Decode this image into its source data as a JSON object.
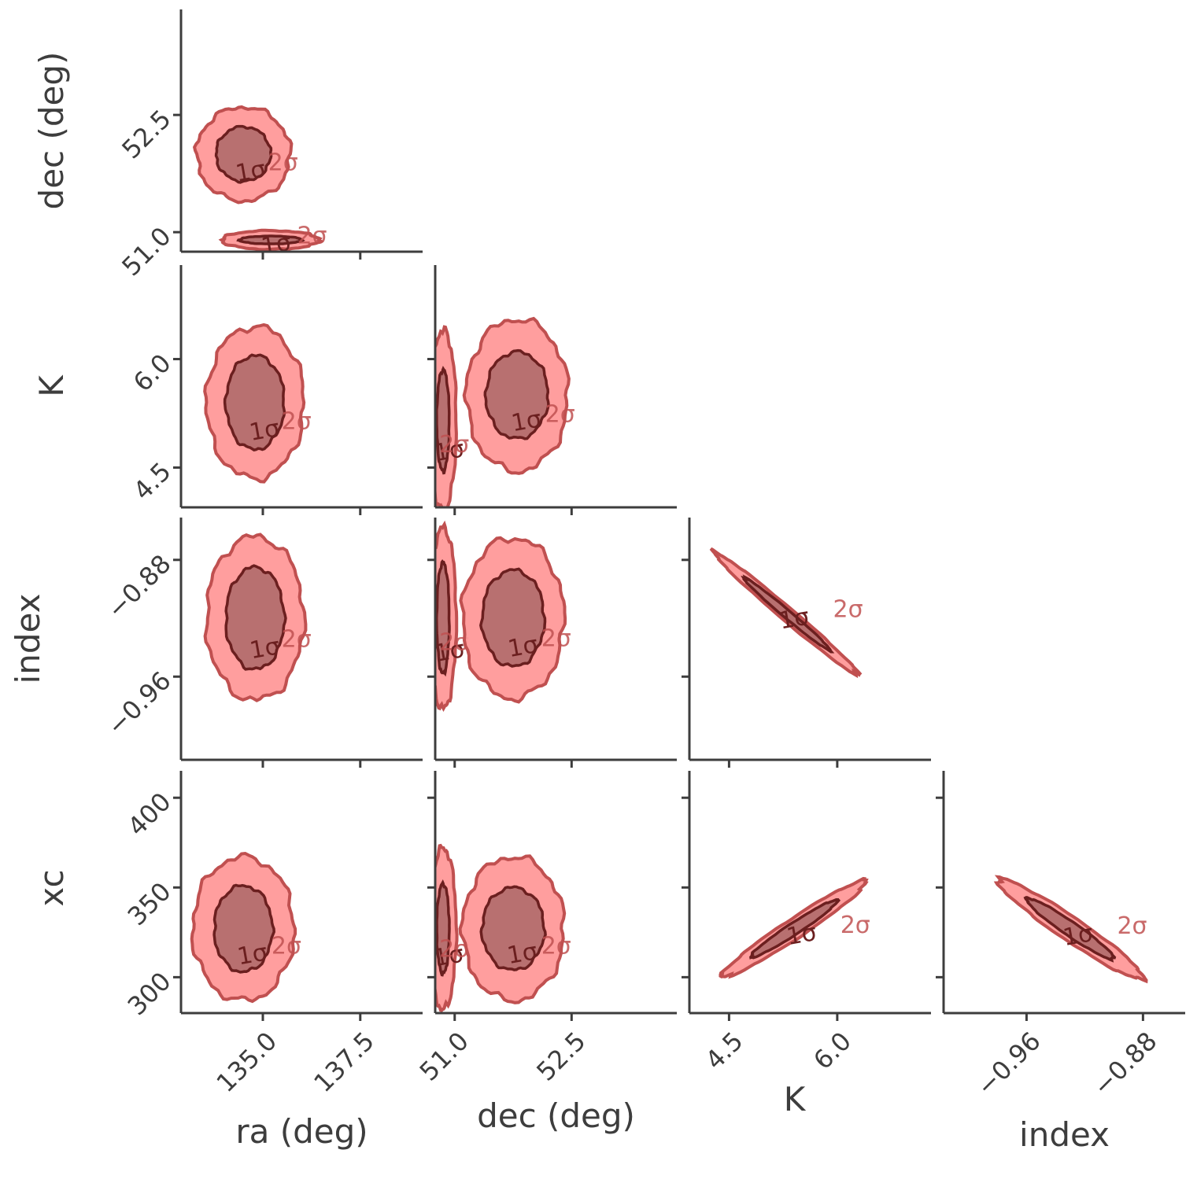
{
  "chart_data": {
    "type": "corner",
    "params": [
      "ra (deg)",
      "dec (deg)",
      "K",
      "index",
      "xc"
    ],
    "axes": {
      "ra (deg)": {
        "label": "ra (deg)",
        "lim": [
          132.9,
          139.1
        ],
        "ticks": [
          135.0,
          137.5
        ],
        "tick_labels": [
          "135.0",
          "137.5"
        ]
      },
      "dec (deg)": {
        "label": "dec (deg)",
        "lim": [
          50.75,
          53.85
        ],
        "ticks": [
          51.0,
          52.5
        ],
        "tick_labels": [
          "51.0",
          "52.5"
        ]
      },
      "K": {
        "label": "K",
        "lim": [
          3.95,
          7.3
        ],
        "ticks": [
          4.5,
          6.0
        ],
        "tick_labels": [
          "4.5",
          "6.0"
        ]
      },
      "index": {
        "label": "index",
        "lim": [
          -1.017,
          -0.851
        ],
        "ticks": [
          -0.96,
          -0.88
        ],
        "tick_labels": [
          "−0.96",
          "−0.88"
        ]
      },
      "xc": {
        "label": "xc",
        "lim": [
          280,
          415
        ],
        "ticks": [
          300,
          350,
          400
        ],
        "tick_labels": [
          "300",
          "350",
          "400"
        ]
      }
    },
    "colors": {
      "outer_fill": "#ff9999",
      "outer_line": "#c05050",
      "inner_fill": "#b87070",
      "inner_line": "#6b1f1f",
      "axis": "#3d3d3d"
    },
    "contour_labels": {
      "inner": "1σ",
      "outer": "2σ"
    },
    "panels": [
      {
        "x": "ra (deg)",
        "y": "dec (deg)",
        "blobs": [
          {
            "center": [
              134.5,
              52.0
            ],
            "inner": [
              0.7,
              0.35
            ],
            "outer": [
              1.2,
              0.6
            ],
            "corr": 0.0
          },
          {
            "center": [
              135.2,
              50.9
            ],
            "inner": [
              0.8,
              0.05
            ],
            "outer": [
              1.25,
              0.12
            ],
            "corr": 0.0
          }
        ]
      },
      {
        "x": "ra (deg)",
        "y": "K",
        "blobs": [
          {
            "center": [
              134.8,
              5.4
            ],
            "inner": [
              0.75,
              0.65
            ],
            "outer": [
              1.25,
              1.05
            ],
            "corr": 0.0
          }
        ]
      },
      {
        "x": "dec (deg)",
        "y": "K",
        "blobs": [
          {
            "center": [
              50.85,
              5.15
            ],
            "inner": [
              0.08,
              0.7
            ],
            "outer": [
              0.17,
              1.25
            ],
            "corr": 0.0
          },
          {
            "center": [
              51.8,
              5.5
            ],
            "inner": [
              0.4,
              0.6
            ],
            "outer": [
              0.65,
              1.05
            ],
            "corr": 0.0
          }
        ]
      },
      {
        "x": "ra (deg)",
        "y": "index",
        "blobs": [
          {
            "center": [
              134.8,
              -0.92
            ],
            "inner": [
              0.75,
              0.035
            ],
            "outer": [
              1.25,
              0.056
            ],
            "corr": 0.0
          }
        ]
      },
      {
        "x": "dec (deg)",
        "y": "index",
        "blobs": [
          {
            "center": [
              50.85,
              -0.92
            ],
            "inner": [
              0.08,
              0.038
            ],
            "outer": [
              0.17,
              0.062
            ],
            "corr": 0.0
          },
          {
            "center": [
              51.75,
              -0.92
            ],
            "inner": [
              0.4,
              0.033
            ],
            "outer": [
              0.65,
              0.055
            ],
            "corr": 0.0
          }
        ]
      },
      {
        "x": "K",
        "y": "index",
        "blobs": [
          {
            "center": [
              5.3,
              -0.917
            ],
            "inner": [
              0.6,
              0.025
            ],
            "outer": [
              1.0,
              0.042
            ],
            "corr": -0.99
          }
        ]
      },
      {
        "x": "ra (deg)",
        "y": "xc",
        "blobs": [
          {
            "center": [
              134.5,
              327
            ],
            "inner": [
              0.75,
              24
            ],
            "outer": [
              1.3,
              40
            ],
            "corr": 0.0
          }
        ]
      },
      {
        "x": "dec (deg)",
        "y": "xc",
        "blobs": [
          {
            "center": [
              50.85,
              327
            ],
            "inner": [
              0.08,
              25
            ],
            "outer": [
              0.17,
              45
            ],
            "corr": 0.0
          },
          {
            "center": [
              51.75,
              327
            ],
            "inner": [
              0.4,
              23
            ],
            "outer": [
              0.65,
              40
            ],
            "corr": 0.0
          }
        ]
      },
      {
        "x": "K",
        "y": "xc",
        "blobs": [
          {
            "center": [
              5.4,
              327
            ],
            "inner": [
              0.6,
              16
            ],
            "outer": [
              1.0,
              27
            ],
            "corr": 0.97
          }
        ]
      },
      {
        "x": "index",
        "y": "xc",
        "blobs": [
          {
            "center": [
              -0.93,
              327
            ],
            "inner": [
              0.03,
              17
            ],
            "outer": [
              0.05,
              28
            ],
            "corr": -0.96
          }
        ]
      }
    ]
  }
}
